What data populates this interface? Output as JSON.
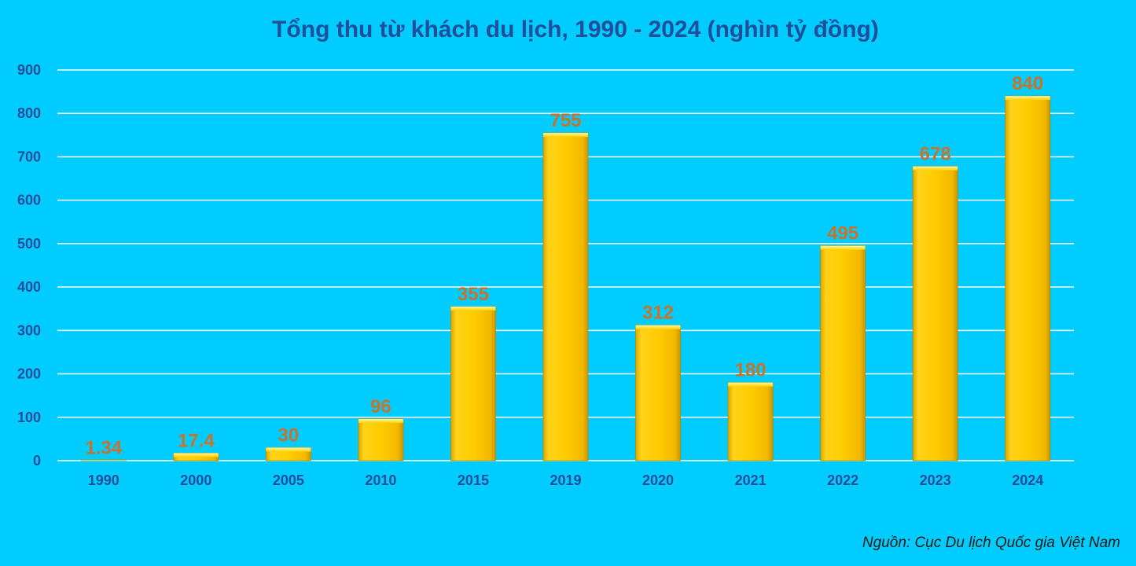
{
  "chart_data": {
    "type": "bar",
    "title": "Tổng thu từ khách du lịch, 1990 - 2024 (nghìn tỷ đồng)",
    "xlabel": "",
    "ylabel": "",
    "categories": [
      "1990",
      "2000",
      "2005",
      "2010",
      "2015",
      "2019",
      "2020",
      "2021",
      "2022",
      "2023",
      "2024"
    ],
    "values": [
      1.34,
      17.4,
      30,
      96,
      355,
      755,
      312,
      180,
      495,
      678,
      840
    ],
    "data_labels": [
      "1.34",
      "17.4",
      "30",
      "96",
      "355",
      "755",
      "312",
      "180",
      "495",
      "678",
      "840"
    ],
    "ylim": [
      0,
      900
    ],
    "yticks": [
      0,
      100,
      200,
      300,
      400,
      500,
      600,
      700,
      800,
      900
    ],
    "grid": true,
    "legend": "none"
  },
  "colors": {
    "background": "#00CCFF",
    "title": "#1F4E9A",
    "tick_label": "#1F4E9A",
    "data_label": "#C8722A",
    "gridline": "#FFFFFF",
    "bar_fill": "#FFC800",
    "bar_edge": "#B08A00"
  },
  "source_note": "Nguồn: Cục Du lịch Quốc gia Việt Nam"
}
